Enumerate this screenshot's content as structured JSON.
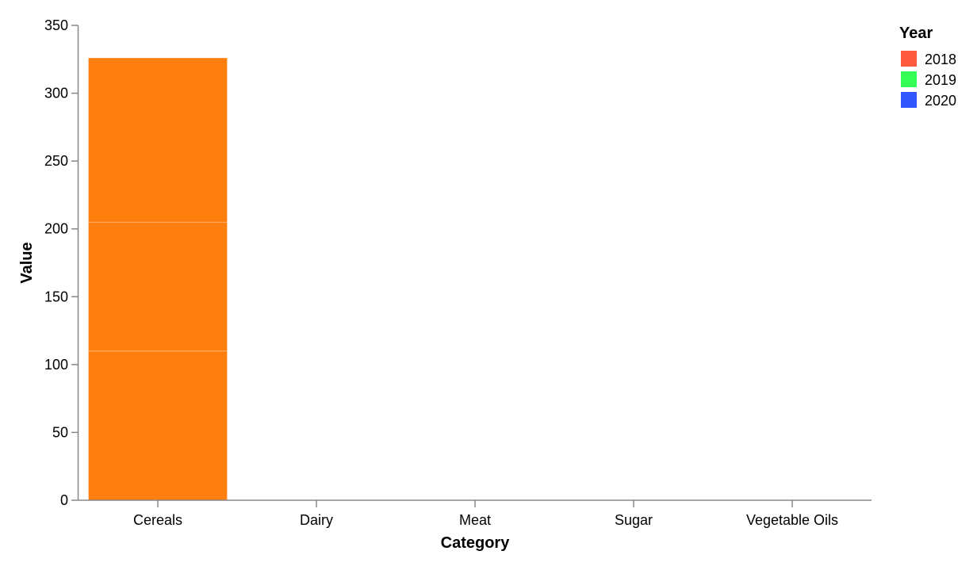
{
  "chart_data": {
    "type": "bar",
    "stacked": true,
    "categories": [
      "Cereals",
      "Dairy",
      "Meat",
      "Sugar",
      "Vegetable Oils"
    ],
    "series": [
      {
        "name": "2018",
        "values": [
          110,
          0,
          0,
          0,
          0
        ]
      },
      {
        "name": "2019",
        "values": [
          95,
          0,
          0,
          0,
          0
        ]
      },
      {
        "name": "2020",
        "values": [
          121,
          0,
          0,
          0,
          0
        ]
      }
    ],
    "bar_color": "#FF7F0E",
    "xlabel": "Category",
    "ylabel": "Value",
    "ylim": [
      0,
      350
    ],
    "yticks": [
      "0",
      "50",
      "100",
      "150",
      "200",
      "250",
      "300",
      "350"
    ],
    "grid": false,
    "legend": {
      "title": "Year",
      "placement": "top-right",
      "items": [
        {
          "label": "2018",
          "color": "#FF5A3D"
        },
        {
          "label": "2019",
          "color": "#33FF57"
        },
        {
          "label": "2020",
          "color": "#3357FF"
        }
      ]
    }
  }
}
